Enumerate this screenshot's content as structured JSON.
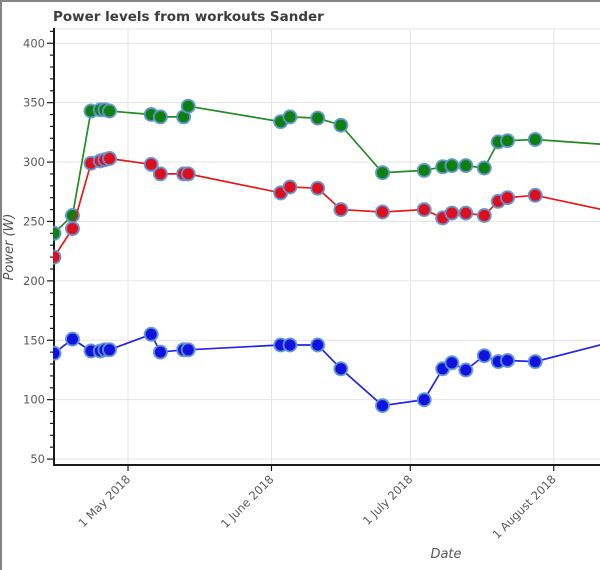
{
  "window": {
    "frame_color": "#848484",
    "background": "#ffffff"
  },
  "text_colors": {
    "title": "#3d3d3d",
    "tick_label": "#5a5a5a",
    "axis_label": "#555555"
  },
  "chart_data": {
    "type": "line",
    "title": "Power levels from workouts Sander",
    "xlabel": "Date",
    "ylabel": "Power (W)",
    "legend": "none",
    "grid": "on",
    "grid_color": "#e4e4e4",
    "axis_color": "#1a1a1a",
    "x_domain": [
      "2018-04-15",
      "2018-08-11"
    ],
    "ylim": [
      45,
      412
    ],
    "y_ticks": [
      50,
      100,
      150,
      200,
      250,
      300,
      350,
      400
    ],
    "y_minor_tick_step": 10,
    "x_ticks": [
      {
        "date": "2018-05-01",
        "label": "1 May 2018"
      },
      {
        "date": "2018-06-01",
        "label": "1 June 2018"
      },
      {
        "date": "2018-07-01",
        "label": "1 July 2018"
      },
      {
        "date": "2018-08-01",
        "label": "1 August 2018"
      }
    ],
    "dates": [
      "2018-04-15",
      "2018-04-19",
      "2018-04-23",
      "2018-04-25",
      "2018-04-26",
      "2018-04-27",
      "2018-05-06",
      "2018-05-08",
      "2018-05-13",
      "2018-05-14",
      "2018-06-03",
      "2018-06-05",
      "2018-06-11",
      "2018-06-16",
      "2018-06-25",
      "2018-07-04",
      "2018-07-08",
      "2018-07-10",
      "2018-07-13",
      "2018-07-17",
      "2018-07-20",
      "2018-07-22",
      "2018-07-28",
      "2018-08-15"
    ],
    "series": [
      {
        "name": "green-series",
        "line_color": "#228b22",
        "marker_color": "#0f7f0f",
        "values": [
          240,
          255,
          343,
          344,
          344,
          343,
          340,
          338,
          338,
          347,
          334,
          338,
          337,
          331,
          291,
          293,
          296,
          297,
          297,
          295,
          317,
          318,
          319,
          314
        ]
      },
      {
        "name": "red-series",
        "line_color": "#e31b1b",
        "marker_color": "#df0e1e",
        "values": [
          220,
          244,
          299,
          301,
          302,
          303,
          298,
          290,
          290,
          290,
          274,
          279,
          278,
          260,
          258,
          260,
          253,
          257,
          257,
          255,
          267,
          270,
          272,
          257
        ]
      },
      {
        "name": "blue-series",
        "line_color": "#2424e8",
        "marker_color": "#1212e0",
        "values": [
          139,
          151,
          141,
          141,
          142,
          142,
          155,
          140,
          142,
          142,
          146,
          146,
          146,
          126,
          95,
          100,
          126,
          131,
          125,
          137,
          132,
          133,
          132,
          150
        ]
      }
    ],
    "marker": {
      "radius": 6.5,
      "ring_color": "#5f97d0",
      "ring_width": 2
    }
  }
}
